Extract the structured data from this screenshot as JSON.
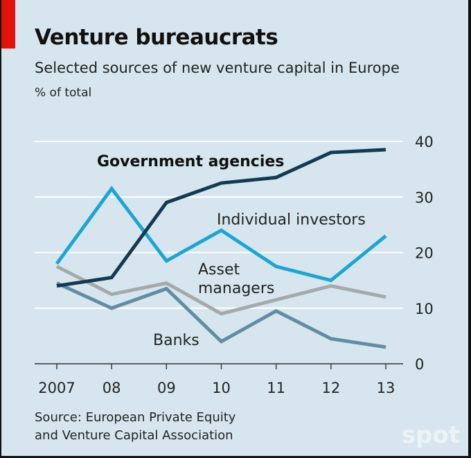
{
  "header": {
    "title": "Venture bureaucrats",
    "subtitle": "Selected sources of new venture capital in Europe",
    "unit": "% of total"
  },
  "source": {
    "line1": "Source: European Private Equity",
    "line2": "and Venture Capital Association"
  },
  "watermark": "spot",
  "colors": {
    "background": "#d6e5ee",
    "accent": "#e3120b",
    "government": "#123b52",
    "individual": "#1aa6d3",
    "asset": "#a5a9ab",
    "banks": "#5f8ea3"
  },
  "chart_data": {
    "type": "line",
    "x": [
      "2007",
      "08",
      "09",
      "10",
      "11",
      "12",
      "13"
    ],
    "ylim": [
      0,
      40
    ],
    "yticks": [
      "0",
      "10",
      "20",
      "30",
      "40"
    ],
    "y_axis_side": "right",
    "grid": true,
    "series": [
      {
        "name": "Government agencies",
        "label": "Government agencies",
        "values": [
          14,
          15.5,
          29,
          32.5,
          33.5,
          38,
          38.5
        ]
      },
      {
        "name": "Individual investors",
        "label": "Individual investors",
        "values": [
          18,
          31.5,
          18.5,
          24,
          17.5,
          15,
          23
        ]
      },
      {
        "name": "Asset managers",
        "label_line1": "Asset",
        "label_line2": "managers",
        "values": [
          17.5,
          12.5,
          14.5,
          9,
          11.5,
          14,
          12
        ]
      },
      {
        "name": "Banks",
        "label": "Banks",
        "values": [
          14.5,
          10,
          13.5,
          4,
          9.5,
          4.5,
          3
        ]
      }
    ]
  }
}
